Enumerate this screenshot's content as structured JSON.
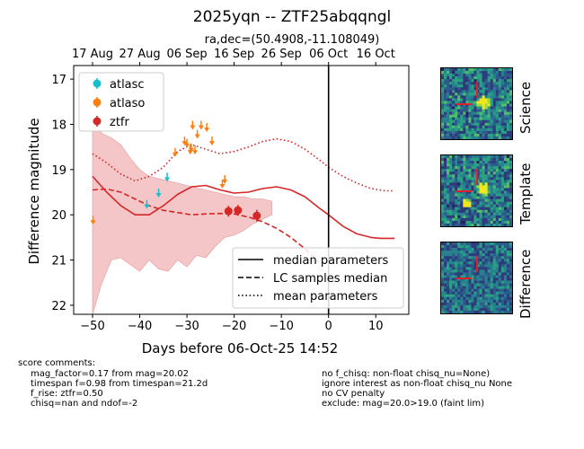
{
  "figure": {
    "title": "2025yqn -- ZTF25abqqngl",
    "subtitle": "ra,dec=(50.4908,-11.108049)"
  },
  "chart_data": {
    "type": "scatter",
    "xlabel": "Days before 06-Oct-25 14:52",
    "ylabel": "Difference magnitude",
    "xlim": [
      -54,
      17
    ],
    "ylim": [
      22.2,
      16.7
    ],
    "y_inverted": true,
    "xticks": [
      -50,
      -40,
      -30,
      -20,
      -10,
      0,
      10
    ],
    "yticks": [
      17,
      18,
      19,
      20,
      21,
      22
    ],
    "top_axis_ticks": [
      {
        "x": -50,
        "label": "17 Aug"
      },
      {
        "x": -40,
        "label": "27 Aug"
      },
      {
        "x": -30,
        "label": "06 Sep"
      },
      {
        "x": -20,
        "label": "16 Sep"
      },
      {
        "x": -10,
        "label": "26 Sep"
      },
      {
        "x": 0,
        "label": "06 Oct"
      },
      {
        "x": 10,
        "label": "16 Oct"
      }
    ],
    "vline_x": 0,
    "legend_points": [
      {
        "name": "atlasc",
        "color": "#17becf"
      },
      {
        "name": "atlaso",
        "color": "#ff7f0e"
      },
      {
        "name": "ztfr",
        "color": "#d62728"
      }
    ],
    "legend_lines": [
      {
        "name": "median parameters",
        "style": "solid"
      },
      {
        "name": "LC samples median",
        "style": "dashed"
      },
      {
        "name": "mean parameters",
        "style": "dotted"
      }
    ],
    "detections": [
      {
        "band": "ztfr",
        "x": -21.2,
        "y": 19.92,
        "err": 0.12
      },
      {
        "band": "ztfr",
        "x": -19.2,
        "y": 19.9,
        "err": 0.12
      },
      {
        "band": "ztfr",
        "x": -15.2,
        "y": 20.02,
        "err": 0.13
      }
    ],
    "upper_limits": [
      {
        "band": "atlaso",
        "x": -49.9,
        "y": 20.1
      },
      {
        "band": "atlaso",
        "x": -32.5,
        "y": 18.6
      },
      {
        "band": "atlaso",
        "x": -30.5,
        "y": 18.35
      },
      {
        "band": "atlaso",
        "x": -30.0,
        "y": 18.4
      },
      {
        "band": "atlaso",
        "x": -29.3,
        "y": 18.55
      },
      {
        "band": "atlaso",
        "x": -29.1,
        "y": 18.5
      },
      {
        "band": "atlaso",
        "x": -28.8,
        "y": 18.0
      },
      {
        "band": "atlaso",
        "x": -28.3,
        "y": 18.55
      },
      {
        "band": "atlaso",
        "x": -27.8,
        "y": 18.2
      },
      {
        "band": "atlaso",
        "x": -27.0,
        "y": 18.0
      },
      {
        "band": "atlaso",
        "x": -25.8,
        "y": 18.05
      },
      {
        "band": "atlaso",
        "x": -24.7,
        "y": 18.35
      },
      {
        "band": "atlaso",
        "x": -22.5,
        "y": 19.3
      },
      {
        "band": "atlaso",
        "x": -22.0,
        "y": 19.2
      },
      {
        "band": "atlasc",
        "x": -38.5,
        "y": 19.75
      },
      {
        "band": "atlasc",
        "x": -36.0,
        "y": 19.5
      },
      {
        "band": "atlasc",
        "x": -34.2,
        "y": 19.15
      }
    ],
    "median_parameters": {
      "x": [
        -50,
        -47,
        -44,
        -41,
        -38,
        -35,
        -32,
        -29,
        -26,
        -23,
        -20,
        -17,
        -14,
        -11,
        -8,
        -5,
        -2,
        0,
        3,
        6,
        9,
        11,
        14
      ],
      "y": [
        19.15,
        19.5,
        19.8,
        20.0,
        20.0,
        19.8,
        19.55,
        19.38,
        19.35,
        19.45,
        19.52,
        19.5,
        19.42,
        19.38,
        19.45,
        19.6,
        19.85,
        20.0,
        20.25,
        20.42,
        20.5,
        20.52,
        20.52
      ]
    },
    "lc_samples_median": {
      "x": [
        -50,
        -47,
        -44,
        -41,
        -38,
        -35,
        -32,
        -29,
        -26,
        -23,
        -20,
        -17,
        -14,
        -11,
        -8,
        -5,
        -2
      ],
      "y": [
        19.45,
        19.43,
        19.5,
        19.65,
        19.8,
        19.9,
        19.95,
        20.0,
        19.98,
        19.97,
        19.98,
        20.05,
        20.15,
        20.3,
        20.5,
        20.75,
        21.05
      ]
    },
    "mean_parameters": {
      "x": [
        -50,
        -47,
        -44,
        -41,
        -38,
        -35,
        -32,
        -29,
        -26,
        -23,
        -20,
        -17,
        -14,
        -11,
        -8,
        -5,
        -2,
        0,
        3,
        6,
        9,
        12,
        14
      ],
      "y": [
        18.65,
        18.85,
        19.1,
        19.25,
        19.15,
        18.95,
        18.6,
        18.45,
        18.55,
        18.65,
        18.6,
        18.5,
        18.38,
        18.32,
        18.38,
        18.55,
        18.78,
        18.95,
        19.15,
        19.3,
        19.42,
        19.47,
        19.47
      ]
    },
    "band_lower": {
      "x": [
        -50,
        -48,
        -46,
        -44,
        -42,
        -40,
        -38,
        -36,
        -34,
        -32,
        -30,
        -28,
        -26,
        -24,
        -22,
        -20,
        -18,
        -16,
        -14,
        -12
      ],
      "y": [
        22.2,
        21.5,
        21.0,
        20.95,
        21.1,
        21.25,
        21.0,
        21.2,
        21.25,
        21.0,
        21.15,
        20.9,
        20.95,
        20.7,
        20.5,
        20.45,
        20.35,
        20.2,
        20.1,
        20.0
      ]
    },
    "band_upper": {
      "x": [
        -50,
        -48,
        -46,
        -44,
        -42,
        -40,
        -38,
        -36,
        -34,
        -32,
        -30,
        -28,
        -26,
        -24,
        -22,
        -20,
        -18,
        -16,
        -14,
        -12
      ],
      "y": [
        17.9,
        18.2,
        18.3,
        18.45,
        18.75,
        19.0,
        19.15,
        19.2,
        19.25,
        19.3,
        19.35,
        19.4,
        19.45,
        19.5,
        19.55,
        19.6,
        19.6,
        19.65,
        19.65,
        19.7
      ]
    },
    "colors": {
      "atlasc": "#17becf",
      "atlaso": "#ff7f0e",
      "ztfr": "#d62728",
      "model": "#d62728",
      "band_fill": "#f4c6c7"
    }
  },
  "stamps": [
    {
      "label": "Science",
      "kind": "science"
    },
    {
      "label": "Template",
      "kind": "template"
    },
    {
      "label": "Difference",
      "kind": "difference"
    }
  ],
  "comments": {
    "header": "score comments:",
    "left": [
      "mag_factor=0.17 from mag=20.02",
      "timespan f=0.98 from timespan=21.2d",
      "f_rise: ztfr=0.50",
      "chisq=nan and ndof=-2"
    ],
    "right": [
      "no f_chisq: non-float chisq_nu=None)",
      "ignore interest as non-float chisq_nu None",
      "no CV penalty",
      "exclude: mag=20.0>19.0 (faint lim)"
    ]
  }
}
